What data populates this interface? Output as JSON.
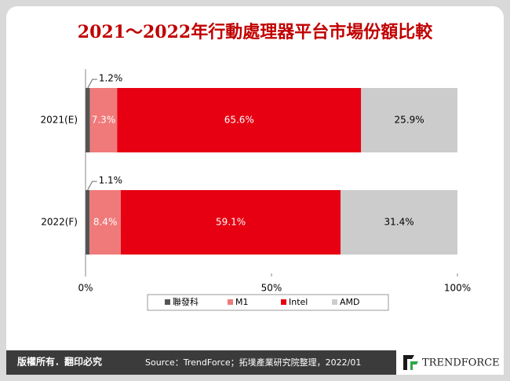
{
  "chart_data": {
    "type": "stacked-barh",
    "title": "2021～2022年行動處理器平台市場份額比較",
    "categories": [
      "2021(E)",
      "2022(F)"
    ],
    "series": [
      {
        "name": "聯發科",
        "color": "#555555",
        "values": [
          1.2,
          1.1
        ],
        "value_labels": [
          "1.2%",
          "1.1%"
        ],
        "label_color": "#000000"
      },
      {
        "name": "M1",
        "color": "#f07a7a",
        "values": [
          7.3,
          8.4
        ],
        "value_labels": [
          "7.3%",
          "8.4%"
        ],
        "label_color": "#ffffff"
      },
      {
        "name": "Intel",
        "color": "#e60012",
        "values": [
          65.6,
          59.1
        ],
        "value_labels": [
          "65.6%",
          "59.1%"
        ],
        "label_color": "#ffffff"
      },
      {
        "name": "AMD",
        "color": "#cccccc",
        "values": [
          25.9,
          31.4
        ],
        "value_labels": [
          "25.9%",
          "31.4%"
        ],
        "label_color": "#000000"
      }
    ],
    "xlim": [
      0,
      100
    ],
    "xticks": [
      {
        "value": 0,
        "label": "0%"
      },
      {
        "value": 50,
        "label": "50%"
      },
      {
        "value": 100,
        "label": "100%"
      }
    ],
    "legend": "bottom"
  },
  "footer": {
    "rights": "版權所有．翻印必究",
    "source": "Source：TrendForce；拓墣產業研究院整理，2022/01",
    "logo": "TRENDFORCE"
  }
}
